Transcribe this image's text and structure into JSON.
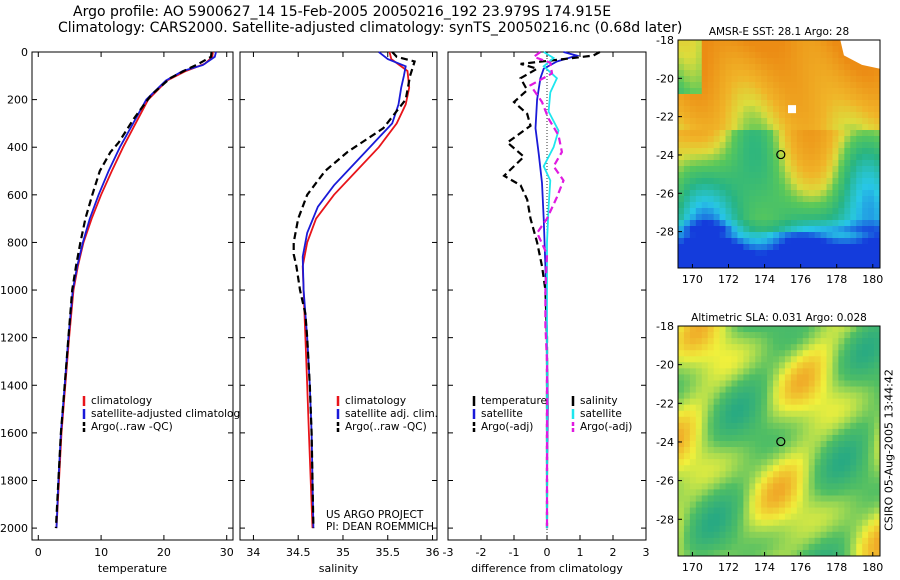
{
  "header": {
    "line1": "Argo profile: AO 5900627_14 15-Feb-2005 20050216_192 23.979S 174.915E",
    "line2": "Climatology: CARS2000. Satellite-adjusted climatology: synTS_20050216.nc (0.68d later)"
  },
  "credit": "CSIRO 05-Aug-2005 13:44:42",
  "colors": {
    "red": "#e8141a",
    "blue": "#1a1ad8",
    "black": "#000000",
    "cyan": "#1ee6ee",
    "magenta": "#e01ae0"
  },
  "chart_data": [
    {
      "type": "line",
      "id": "temperature",
      "xlabel": "temperature",
      "xlim": [
        -1,
        31
      ],
      "ylim": [
        0,
        2050
      ],
      "xticks": [
        0,
        10,
        20,
        30
      ],
      "yticks": [
        0,
        200,
        400,
        600,
        800,
        1000,
        1200,
        1400,
        1600,
        1800,
        2000
      ],
      "y_reversed": true,
      "legend": [
        "climatology",
        "satellite-adjusted climatology",
        "Argo(..raw -QC)"
      ],
      "series": [
        {
          "name": "climatology",
          "color": "red",
          "dash": false,
          "points": [
            [
              27.8,
              0
            ],
            [
              27.7,
              20
            ],
            [
              26.5,
              50
            ],
            [
              23.5,
              80
            ],
            [
              20.5,
              120
            ],
            [
              17.5,
              200
            ],
            [
              15.5,
              300
            ],
            [
              13.5,
              400
            ],
            [
              11.7,
              500
            ],
            [
              10,
              600
            ],
            [
              8.5,
              700
            ],
            [
              7.2,
              800
            ],
            [
              6.3,
              900
            ],
            [
              5.6,
              1000
            ],
            [
              4.9,
              1200
            ],
            [
              4.3,
              1400
            ],
            [
              3.7,
              1600
            ],
            [
              3.3,
              1800
            ],
            [
              2.9,
              2000
            ]
          ]
        },
        {
          "name": "satellite-adjusted climatology",
          "color": "blue",
          "dash": false,
          "points": [
            [
              28.3,
              0
            ],
            [
              28.1,
              20
            ],
            [
              26.2,
              55
            ],
            [
              23,
              80
            ],
            [
              20.3,
              120
            ],
            [
              17.2,
              200
            ],
            [
              15.1,
              300
            ],
            [
              13,
              400
            ],
            [
              11.2,
              500
            ],
            [
              9.6,
              600
            ],
            [
              8.2,
              700
            ],
            [
              7.1,
              800
            ],
            [
              6.2,
              900
            ],
            [
              5.5,
              1000
            ],
            [
              4.8,
              1200
            ],
            [
              4.2,
              1400
            ],
            [
              3.6,
              1600
            ],
            [
              3.2,
              1800
            ],
            [
              2.9,
              2000
            ]
          ]
        },
        {
          "name": "Argo(..raw -QC)",
          "color": "black",
          "dash": true,
          "points": [
            [
              27.6,
              0
            ],
            [
              27.5,
              20
            ],
            [
              25.5,
              50
            ],
            [
              23.5,
              75
            ],
            [
              21,
              110
            ],
            [
              18,
              180
            ],
            [
              15.2,
              280
            ],
            [
              12.8,
              380
            ],
            [
              11.5,
              420
            ],
            [
              9.8,
              500
            ],
            [
              8.6,
              600
            ],
            [
              7.5,
              700
            ],
            [
              6.7,
              800
            ],
            [
              6,
              900
            ],
            [
              5.4,
              1000
            ],
            [
              4.8,
              1200
            ],
            [
              4.2,
              1400
            ],
            [
              3.6,
              1600
            ],
            [
              3.2,
              1800
            ],
            [
              2.8,
              2000
            ]
          ]
        }
      ]
    },
    {
      "type": "line",
      "id": "salinity",
      "xlabel": "salinity",
      "xlim": [
        33.85,
        36.05
      ],
      "ylim": [
        0,
        2050
      ],
      "xticks": [
        34,
        34.5,
        35,
        35.5,
        36
      ],
      "y_reversed": true,
      "legend": [
        "climatology",
        "satellite adj. clim.",
        "Argo(..raw -QC)"
      ],
      "annotation": [
        "US ARGO PROJECT",
        "PI: DEAN ROEMMICH"
      ],
      "series": [
        {
          "name": "climatology",
          "color": "red",
          "dash": false,
          "points": [
            [
              35.52,
              0
            ],
            [
              35.54,
              30
            ],
            [
              35.72,
              80
            ],
            [
              35.74,
              150
            ],
            [
              35.7,
              220
            ],
            [
              35.6,
              300
            ],
            [
              35.4,
              400
            ],
            [
              35.15,
              500
            ],
            [
              34.9,
              600
            ],
            [
              34.7,
              700
            ],
            [
              34.6,
              800
            ],
            [
              34.55,
              900
            ],
            [
              34.56,
              1000
            ],
            [
              34.58,
              1200
            ],
            [
              34.6,
              1400
            ],
            [
              34.62,
              1600
            ],
            [
              34.64,
              1800
            ],
            [
              34.66,
              2000
            ]
          ]
        },
        {
          "name": "satellite adj. clim.",
          "color": "blue",
          "dash": false,
          "points": [
            [
              35.4,
              0
            ],
            [
              35.5,
              30
            ],
            [
              35.7,
              60
            ],
            [
              35.68,
              100
            ],
            [
              35.65,
              150
            ],
            [
              35.62,
              220
            ],
            [
              35.55,
              300
            ],
            [
              35.3,
              400
            ],
            [
              35.1,
              480
            ],
            [
              34.9,
              560
            ],
            [
              34.72,
              650
            ],
            [
              34.6,
              760
            ],
            [
              34.55,
              860
            ],
            [
              34.56,
              1000
            ],
            [
              34.6,
              1200
            ],
            [
              34.63,
              1400
            ],
            [
              34.65,
              1600
            ],
            [
              34.66,
              1800
            ],
            [
              34.67,
              2000
            ]
          ]
        },
        {
          "name": "Argo(..raw -QC)",
          "color": "black",
          "dash": true,
          "points": [
            [
              35.55,
              0
            ],
            [
              35.6,
              20
            ],
            [
              35.8,
              40
            ],
            [
              35.75,
              100
            ],
            [
              35.7,
              200
            ],
            [
              35.45,
              320
            ],
            [
              35.05,
              420
            ],
            [
              34.8,
              500
            ],
            [
              34.6,
              600
            ],
            [
              34.5,
              700
            ],
            [
              34.45,
              800
            ],
            [
              34.45,
              850
            ],
            [
              34.48,
              900
            ],
            [
              34.52,
              1000
            ],
            [
              34.58,
              1100
            ],
            [
              34.6,
              1200
            ],
            [
              34.63,
              1400
            ],
            [
              34.65,
              1600
            ],
            [
              34.66,
              1800
            ],
            [
              34.67,
              2000
            ]
          ]
        }
      ]
    },
    {
      "type": "line",
      "id": "difference",
      "xlabel": "difference from climatology",
      "xlim": [
        -3,
        3
      ],
      "ylim": [
        0,
        2050
      ],
      "xticks": [
        -3,
        -2,
        -1,
        0,
        1,
        2,
        3
      ],
      "y_reversed": true,
      "legend_left": [
        "temperature",
        "satellite",
        "Argo(-adj)"
      ],
      "legend_right": [
        "salinity",
        "satellite",
        "Argo(-adj)"
      ],
      "series": [
        {
          "name": "satellite",
          "group": "temperature",
          "color": "blue",
          "dash": false,
          "points": [
            [
              0.5,
              0
            ],
            [
              0.9,
              15
            ],
            [
              0.3,
              40
            ],
            [
              -0.1,
              70
            ],
            [
              -0.2,
              110
            ],
            [
              -0.3,
              200
            ],
            [
              -0.35,
              320
            ],
            [
              -0.25,
              430
            ],
            [
              -0.15,
              550
            ],
            [
              -0.1,
              700
            ],
            [
              -0.05,
              900
            ],
            [
              0,
              1200
            ],
            [
              0.02,
              1500
            ],
            [
              0,
              1800
            ],
            [
              0,
              2000
            ]
          ]
        },
        {
          "name": "Argo(-adj)",
          "group": "temperature",
          "color": "black",
          "dash": true,
          "points": [
            [
              1.6,
              0
            ],
            [
              1.4,
              15
            ],
            [
              0.5,
              30
            ],
            [
              -0.8,
              50
            ],
            [
              -0.3,
              70
            ],
            [
              -0.8,
              110
            ],
            [
              -0.6,
              160
            ],
            [
              -1,
              210
            ],
            [
              -0.6,
              260
            ],
            [
              -0.5,
              310
            ],
            [
              -1.2,
              380
            ],
            [
              -0.7,
              440
            ],
            [
              -1.3,
              520
            ],
            [
              -0.8,
              560
            ],
            [
              -0.6,
              620
            ],
            [
              -0.5,
              700
            ],
            [
              -0.3,
              800
            ],
            [
              -0.15,
              900
            ],
            [
              -0.05,
              1000
            ],
            [
              0,
              1200
            ],
            [
              0,
              1500
            ],
            [
              0,
              1800
            ],
            [
              0,
              2000
            ]
          ]
        },
        {
          "name": "satellite",
          "group": "salinity",
          "color": "cyan",
          "dash": false,
          "points": [
            [
              -0.1,
              0
            ],
            [
              0.2,
              25
            ],
            [
              -0.1,
              60
            ],
            [
              0.3,
              110
            ],
            [
              0.1,
              170
            ],
            [
              0.05,
              250
            ],
            [
              0.35,
              330
            ],
            [
              0.2,
              400
            ],
            [
              -0.1,
              480
            ],
            [
              0.1,
              540
            ],
            [
              0.05,
              650
            ],
            [
              0,
              800
            ],
            [
              0,
              1000
            ],
            [
              0,
              1300
            ],
            [
              0,
              1600
            ],
            [
              0,
              2000
            ]
          ]
        },
        {
          "name": "Argo(-adj)",
          "group": "salinity",
          "color": "magenta",
          "dash": true,
          "points": [
            [
              -0.2,
              0
            ],
            [
              -0.4,
              20
            ],
            [
              0.1,
              45
            ],
            [
              0.15,
              90
            ],
            [
              -0.5,
              140
            ],
            [
              -0.15,
              210
            ],
            [
              0.05,
              280
            ],
            [
              0.35,
              350
            ],
            [
              0.45,
              420
            ],
            [
              0.2,
              480
            ],
            [
              0.5,
              540
            ],
            [
              0.3,
              610
            ],
            [
              0,
              700
            ],
            [
              -0.3,
              760
            ],
            [
              0,
              850
            ],
            [
              -0.05,
              1000
            ],
            [
              -0.05,
              1150
            ],
            [
              0,
              1300
            ],
            [
              0,
              1500
            ],
            [
              0,
              1800
            ],
            [
              0,
              2000
            ]
          ]
        }
      ]
    },
    {
      "type": "heatmap",
      "id": "sst-map",
      "title": "AMSR-E SST: 28.1 Argo: 28",
      "xlim": [
        169.2,
        180.4
      ],
      "ylim": [
        -29.9,
        -18
      ],
      "xticks": [
        170,
        172,
        174,
        176,
        178,
        180
      ],
      "yticks": [
        -18,
        -20,
        -22,
        -24,
        -26,
        -28
      ],
      "marker": [
        174.9,
        -23.98
      ]
    },
    {
      "type": "heatmap",
      "id": "sla-map",
      "title": "Altimetric SLA: 0.031 Argo: 0.028",
      "xlim": [
        169.2,
        180.4
      ],
      "ylim": [
        -29.9,
        -18
      ],
      "xticks": [
        170,
        172,
        174,
        176,
        178,
        180
      ],
      "yticks": [
        -18,
        -20,
        -22,
        -24,
        -26,
        -28
      ],
      "marker": [
        174.9,
        -23.98
      ]
    }
  ]
}
